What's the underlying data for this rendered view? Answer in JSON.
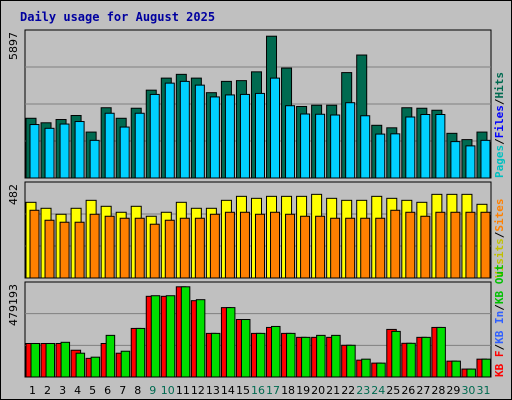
{
  "chart_data": {
    "type": "bar",
    "title": "Daily usage for August 2025",
    "categories": [
      "1",
      "2",
      "3",
      "4",
      "5",
      "6",
      "7",
      "8",
      "9",
      "10",
      "11",
      "12",
      "13",
      "14",
      "15",
      "16",
      "17",
      "18",
      "19",
      "20",
      "21",
      "22",
      "23",
      "24",
      "25",
      "26",
      "27",
      "28",
      "29",
      "30",
      "31"
    ],
    "weekend_days": [
      "9",
      "10",
      "16",
      "17",
      "23",
      "24",
      "30",
      "31"
    ],
    "colors": {
      "background": "#c0c0c0",
      "title": "#0000a0",
      "hits": "#006a50",
      "files": "#00d0ff",
      "pages": "#00ffff",
      "visits": "#ffff00",
      "sites": "#ff8000",
      "kbin": "#ff0000",
      "kbout": "#00e000",
      "weekday_label": "#000000",
      "weekend_label": "#006a50"
    },
    "panels": [
      {
        "name": "top",
        "max_label": "5897",
        "ylim": [
          0,
          5897
        ],
        "legend": [
          {
            "text": "Pages",
            "color": "#00c0c0"
          },
          {
            "text": "Files",
            "color": "#0000ff"
          },
          {
            "text": "Hits",
            "color": "#006a50"
          }
        ],
        "series": [
          {
            "name": "Hits",
            "values": [
              2380,
              2200,
              2330,
              2490,
              1830,
              2800,
              2380,
              2780,
              3500,
              3980,
              4130,
              3980,
              3400,
              3850,
              3880,
              4230,
              5650,
              4380,
              2850,
              2900,
              2900,
              4200,
              4900,
              2100,
              2000,
              2800,
              2780,
              2700,
              1780,
              1530,
              1830
            ]
          },
          {
            "name": "Files",
            "values": [
              2130,
              1980,
              2150,
              2250,
              1500,
              2580,
              2030,
              2580,
              3330,
              3780,
              3850,
              3700,
              3230,
              3310,
              3330,
              3370,
              3980,
              2880,
              2550,
              2540,
              2510,
              3000,
              2480,
              1750,
              1760,
              2430,
              2530,
              2530,
              1450,
              1280,
              1500
            ]
          }
        ]
      },
      {
        "name": "middle",
        "max_label": "482",
        "ylim": [
          0,
          482
        ],
        "legend": [
          {
            "text": "Visits",
            "color": "#c0c000"
          },
          {
            "text": "Sites",
            "color": "#ff8000"
          }
        ],
        "series": [
          {
            "name": "Visits",
            "values": [
              380,
              350,
              320,
              350,
              390,
              360,
              330,
              360,
              310,
              330,
              380,
              350,
              350,
              390,
              410,
              400,
              410,
              410,
              410,
              420,
              400,
              390,
              390,
              410,
              400,
              390,
              380,
              420,
              420,
              420,
              370
            ]
          },
          {
            "name": "Sites",
            "values": [
              340,
              290,
              280,
              280,
              320,
              310,
              300,
              300,
              270,
              290,
              300,
              300,
              320,
              330,
              330,
              320,
              330,
              320,
              310,
              310,
              300,
              300,
              300,
              300,
              340,
              330,
              310,
              330,
              330,
              330,
              330
            ]
          }
        ]
      },
      {
        "name": "bottom",
        "max_label": "479193",
        "ylim": [
          0,
          479193
        ],
        "legend": [
          {
            "text": "KB F",
            "color": "#ff0000"
          },
          {
            "text": "KB In",
            "color": "#3060ff"
          },
          {
            "text": "KB Out",
            "color": "#00c000"
          }
        ],
        "series": [
          {
            "name": "KB In",
            "values": [
              169000,
              169000,
              169000,
              135000,
              94000,
              169000,
              120000,
              245000,
              407000,
              407000,
              455000,
              385000,
              220000,
              350000,
              290000,
              220000,
              250000,
              220000,
              200000,
              200000,
              200000,
              160000,
              85000,
              70000,
              240000,
              170000,
              200000,
              250000,
              80000,
              40000,
              90000
            ]
          },
          {
            "name": "KB Out",
            "values": [
              169000,
              169000,
              175000,
              120000,
              100000,
              210000,
              130000,
              245000,
              410000,
              410000,
              455000,
              390000,
              220000,
              350000,
              290000,
              220000,
              255000,
              220000,
              200000,
              210000,
              210000,
              160000,
              90000,
              70000,
              230000,
              170000,
              200000,
              250000,
              80000,
              40000,
              90000
            ]
          }
        ]
      }
    ]
  }
}
